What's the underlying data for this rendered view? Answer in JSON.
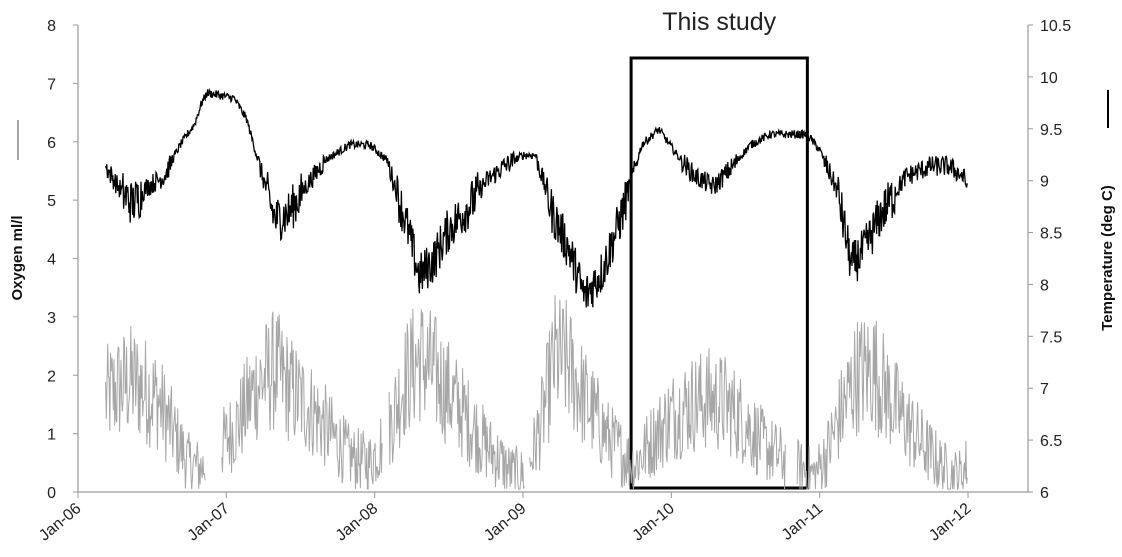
{
  "chart_data": {
    "type": "line",
    "title": "",
    "annotation": "This study",
    "xlabel": "",
    "x_tick_labels": [
      "Jan-06",
      "Jan-07",
      "Jan-08",
      "Jan-09",
      "Jan-10",
      "Jan-11",
      "Jan-12"
    ],
    "y_left": {
      "label": "Oxygen ml/l",
      "range": [
        0,
        8
      ],
      "ticks": [
        "0",
        "1",
        "2",
        "3",
        "4",
        "5",
        "6",
        "7",
        "8"
      ]
    },
    "y_right": {
      "label": "Temperature (deg C)",
      "range": [
        6,
        10.5
      ],
      "ticks": [
        "6",
        "6.5",
        "7",
        "7.5",
        "8",
        "8.5",
        "9",
        "9.5",
        "10",
        "10.5"
      ]
    },
    "highlight_box": {
      "x_start": "2009-10",
      "x_end": "2010-10"
    },
    "grid": false,
    "colors": {
      "oxygen": "#a6a6a6",
      "temperature": "#000000",
      "box": "#000000",
      "axis": "#9a9a9a"
    },
    "series": [
      {
        "name": "Temperature (deg C)",
        "axis": "right",
        "x": [
          "2006-03-10",
          "2006-04-10",
          "2006-05-15",
          "2006-06-20",
          "2006-08-01",
          "2006-09-10",
          "2006-10-15",
          "2006-11-01",
          "2006-11-15",
          "2007-01-20",
          "2007-02-20",
          "2007-03-20",
          "2007-05-01",
          "2007-06-01",
          "2007-07-15",
          "2007-09-01",
          "2007-11-01",
          "2007-12-20",
          "2008-02-01",
          "2008-03-20",
          "2008-04-20",
          "2008-05-25",
          "2008-07-01",
          "2008-08-15",
          "2008-10-01",
          "2008-11-15",
          "2009-01-01",
          "2009-02-01",
          "2009-03-15",
          "2009-04-25",
          "2009-06-01",
          "2009-07-15",
          "2009-09-01",
          "2009-10-20",
          "2009-12-01",
          "2010-01-15",
          "2010-03-01",
          "2010-04-15",
          "2010-06-01",
          "2010-07-15",
          "2010-09-01",
          "2010-10-15",
          "2010-12-01",
          "2011-01-01",
          "2011-02-15",
          "2011-03-20",
          "2011-04-20",
          "2011-06-01",
          "2011-08-01",
          "2011-10-01",
          "2011-11-15",
          "2011-12-20",
          "2011-12-31"
        ],
        "values": [
          9.15,
          8.95,
          8.8,
          8.95,
          9.05,
          9.35,
          9.55,
          9.75,
          9.85,
          9.8,
          9.6,
          9.2,
          8.65,
          8.7,
          8.95,
          9.2,
          9.35,
          9.35,
          9.2,
          8.6,
          8.1,
          8.25,
          8.55,
          8.75,
          9,
          9.15,
          9.25,
          9.25,
          8.7,
          8.35,
          7.9,
          8.15,
          8.7,
          9.35,
          9.5,
          9.25,
          9.05,
          8.95,
          9.15,
          9.35,
          9.45,
          9.45,
          9.45,
          9.3,
          8.9,
          8.2,
          8.35,
          8.7,
          9.05,
          9.15,
          9.15,
          9.05,
          8.95
        ]
      },
      {
        "name": "Oxygen ml/l",
        "axis": "left",
        "x": [
          "2006-03-10",
          "2006-04-15",
          "2006-05-15",
          "2006-07-15",
          "2006-09-01",
          "2006-10-01",
          "2006-11-01",
          "2006-11-15",
          "2007-01-01",
          "2007-02-01",
          "2007-03-15",
          "2007-05-01",
          "2007-06-15",
          "2007-08-01",
          "2007-09-15",
          "2007-11-01",
          "2007-12-20",
          "2008-02-01",
          "2008-03-15",
          "2008-04-20",
          "2008-06-01",
          "2008-08-01",
          "2008-10-01",
          "2008-12-01",
          "2009-01-10",
          "2009-02-15",
          "2009-03-20",
          "2009-04-20",
          "2009-06-01",
          "2009-08-01",
          "2009-10-01",
          "2009-11-15",
          "2010-01-01",
          "2010-02-15",
          "2010-04-01",
          "2010-05-15",
          "2010-07-01",
          "2010-08-15",
          "2010-10-15",
          "2010-11-15",
          "2010-12-20",
          "2011-01-15",
          "2011-02-20",
          "2011-04-01",
          "2011-05-15",
          "2011-07-01",
          "2011-09-01",
          "2011-10-20",
          "2011-11-20",
          "2011-12-15",
          "2011-12-31"
        ],
        "values": [
          1.6,
          1.8,
          1.9,
          1.6,
          0.9,
          0.5,
          0.4,
          0.5,
          0.9,
          1.2,
          1.8,
          2.1,
          1.7,
          1.4,
          1.0,
          0.6,
          0.5,
          1.0,
          1.9,
          2.3,
          2.0,
          1.4,
          0.8,
          0.35,
          0.3,
          1.2,
          2.3,
          2.2,
          1.6,
          0.9,
          0.45,
          0.9,
          1.3,
          1.5,
          1.6,
          1.5,
          1.2,
          0.8,
          0.5,
          0.4,
          0.3,
          0.6,
          1.3,
          2.0,
          2.1,
          1.5,
          0.9,
          0.5,
          0.3,
          0.3,
          0.5
        ]
      }
    ]
  }
}
